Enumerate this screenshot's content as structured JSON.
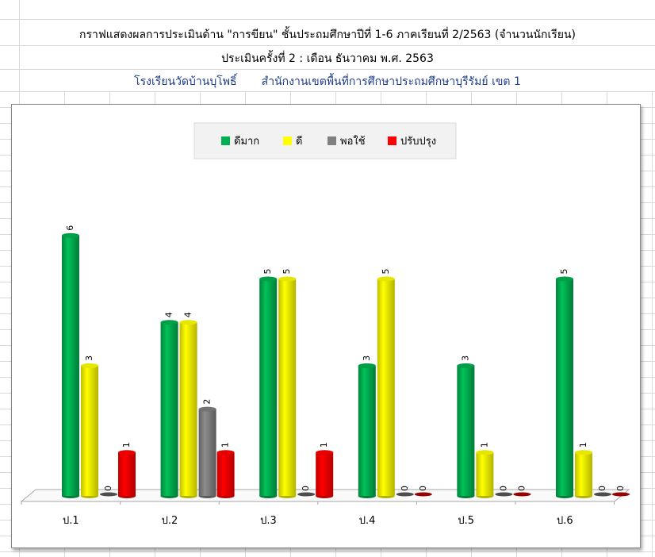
{
  "header": {
    "title": "กราฟแสดงผลการประเมินด้าน \"การขียน\"  ชั้นประถมศึกษาปีที่ 1-6 ภาคเรียนที่ 2/2563 (จำนวนนักเรียน)",
    "subtitle": "ประเมินครั้งที่ 2 : เดือน ธันวาคม  พ.ศ. 2563",
    "school": "โรงเรียนวัดบ้านบุโพธิ์       สำนักงานเขตพื้นที่การศึกษาประถมศึกษาบุรีรัมย์ เขต 1"
  },
  "chart_data": {
    "type": "bar",
    "style": "3d-cylinder",
    "categories": [
      "ป.1",
      "ป.2",
      "ป.3",
      "ป.4",
      "ป.5",
      "ป.6"
    ],
    "series": [
      {
        "name": "ดีมาก",
        "color": "#00b050",
        "values": [
          6,
          4,
          5,
          3,
          3,
          5
        ]
      },
      {
        "name": "ดี",
        "color": "#ffff00",
        "values": [
          3,
          4,
          5,
          5,
          1,
          1
        ]
      },
      {
        "name": "พอใช้",
        "color": "#808080",
        "values": [
          0,
          2,
          0,
          0,
          0,
          0
        ]
      },
      {
        "name": "ปรับปรุง",
        "color": "#ff0000",
        "values": [
          1,
          1,
          1,
          0,
          0,
          0
        ]
      }
    ],
    "ylim": [
      0,
      6
    ],
    "data_labels": true,
    "grid": false,
    "legend": "top-center"
  }
}
